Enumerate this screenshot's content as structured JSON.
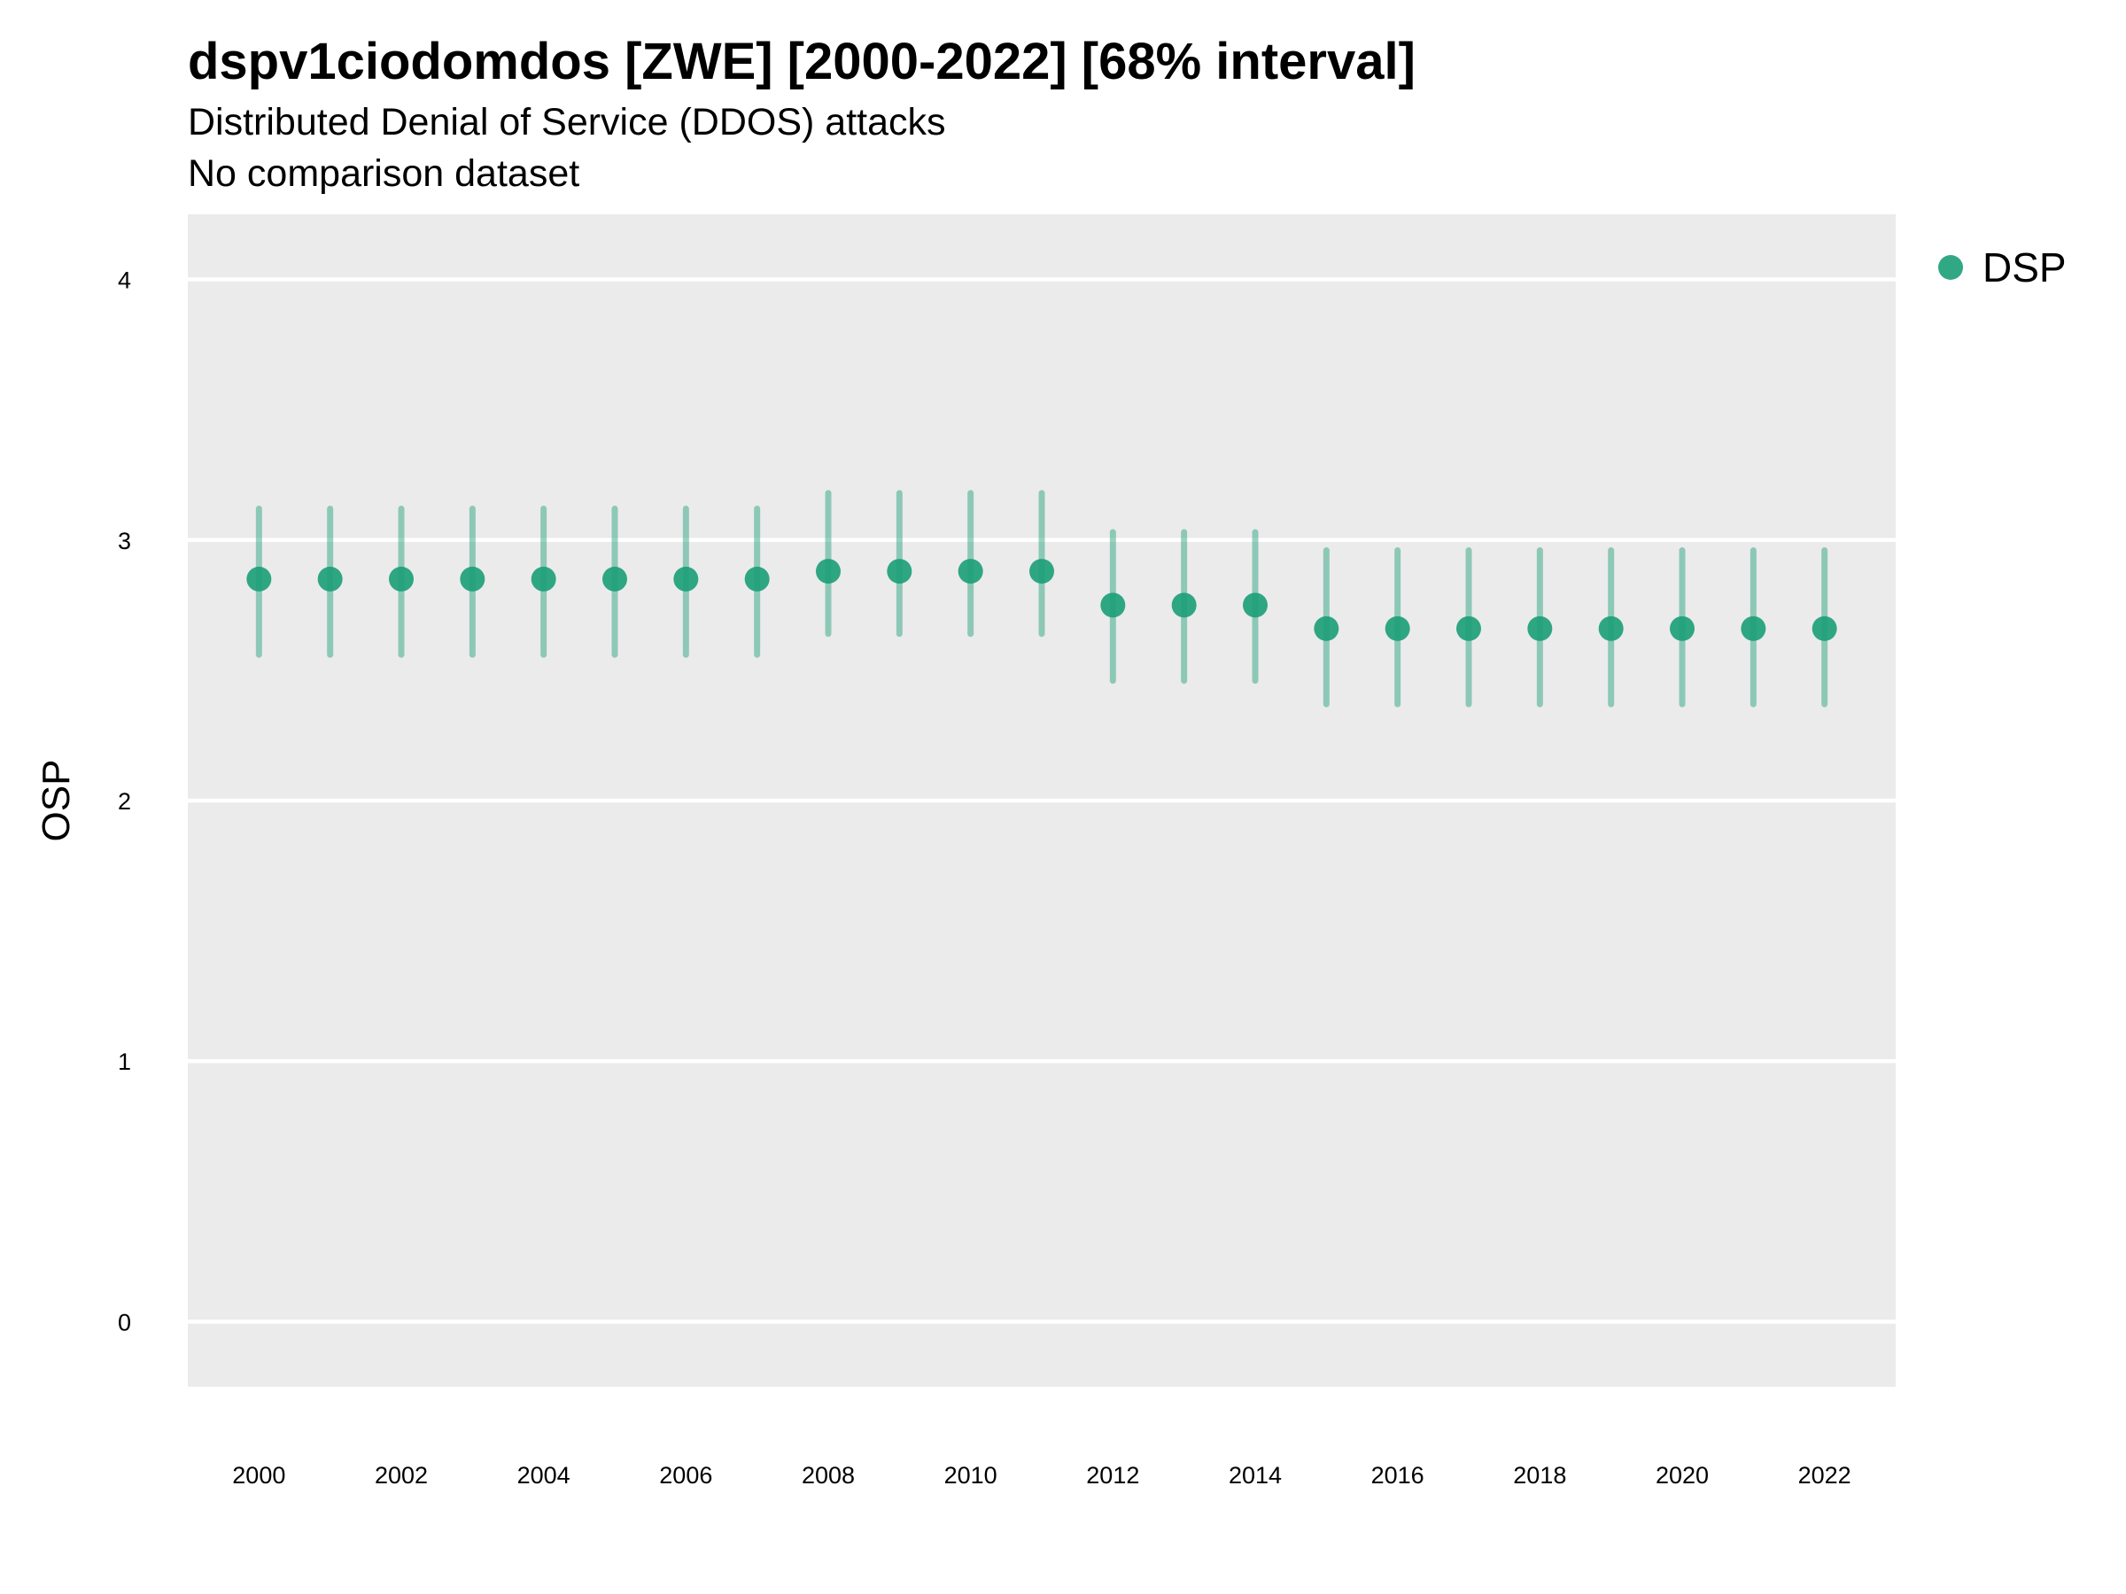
{
  "title": "dspv1ciodomdos [ZWE] [2000-2022] [68% interval]",
  "subtitle": "Distributed Denial of Service (DDOS) attacks",
  "subtitle2": "No comparison dataset",
  "colors": {
    "series": "#1b9e77",
    "panel": "#ebebeb",
    "grid": "#ffffff"
  },
  "chart_data": {
    "type": "scatter",
    "title": "dspv1ciodomdos [ZWE] [2000-2022] [68% interval]",
    "ylabel": "OSP",
    "xlabel": "",
    "ylim": [
      -0.25,
      4.25
    ],
    "xlim": [
      1999,
      2023
    ],
    "y_ticks": [
      0,
      1,
      2,
      3,
      4
    ],
    "x_ticks": [
      2000,
      2002,
      2004,
      2006,
      2008,
      2010,
      2012,
      2014,
      2016,
      2018,
      2020,
      2022
    ],
    "grid": true,
    "legend_position": "right",
    "series": [
      {
        "name": "DSP",
        "x": [
          2000,
          2001,
          2002,
          2003,
          2004,
          2005,
          2006,
          2007,
          2008,
          2009,
          2010,
          2011,
          2012,
          2013,
          2014,
          2015,
          2016,
          2017,
          2018,
          2019,
          2020,
          2021,
          2022
        ],
        "y": [
          2.85,
          2.85,
          2.85,
          2.85,
          2.85,
          2.85,
          2.85,
          2.85,
          2.88,
          2.88,
          2.88,
          2.88,
          2.75,
          2.75,
          2.75,
          2.66,
          2.66,
          2.66,
          2.66,
          2.66,
          2.66,
          2.66,
          2.66
        ],
        "lower": [
          2.56,
          2.56,
          2.56,
          2.56,
          2.56,
          2.56,
          2.56,
          2.56,
          2.64,
          2.64,
          2.64,
          2.64,
          2.46,
          2.46,
          2.46,
          2.37,
          2.37,
          2.37,
          2.37,
          2.37,
          2.37,
          2.37,
          2.37
        ],
        "upper": [
          3.12,
          3.12,
          3.12,
          3.12,
          3.12,
          3.12,
          3.12,
          3.12,
          3.18,
          3.18,
          3.18,
          3.18,
          3.03,
          3.03,
          3.03,
          2.96,
          2.96,
          2.96,
          2.96,
          2.96,
          2.96,
          2.96,
          2.96
        ]
      }
    ]
  }
}
